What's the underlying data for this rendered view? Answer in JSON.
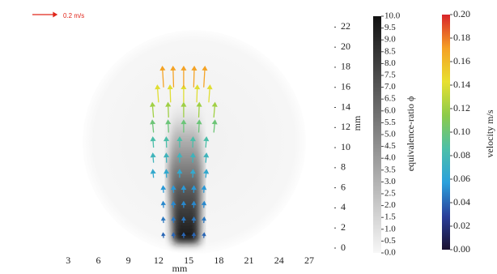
{
  "chart_data": {
    "type": "quiver",
    "xlabel": "mm",
    "ylabel": "mm",
    "xlim": [
      0,
      29.5
    ],
    "ylim": [
      0,
      23
    ],
    "xticks": [
      3,
      6,
      9,
      12,
      15,
      18,
      21,
      24,
      27
    ],
    "yticks": [
      0,
      2,
      4,
      6,
      8,
      10,
      12,
      14,
      16,
      18,
      20,
      22
    ],
    "reference": {
      "value": 0.2,
      "label": "0.2 m/s",
      "color": "#e0261b"
    },
    "arrows": {
      "x": [
        12.5,
        13.5,
        14.5,
        15.5,
        16.5,
        12.5,
        13.5,
        14.5,
        15.5,
        16.5,
        12.5,
        13.5,
        14.5,
        15.5,
        16.5,
        12.5,
        13.5,
        14.5,
        15.5,
        16.5,
        11.5,
        12.8,
        14.1,
        15.4,
        16.7,
        11.5,
        12.8,
        14.1,
        15.4,
        16.7,
        11.5,
        12.8,
        14.1,
        15.4,
        16.7,
        11.5,
        13,
        14.5,
        16,
        17.5,
        11.5,
        13,
        14.5,
        16,
        17.5,
        12,
        13.2,
        14.5,
        15.8,
        17,
        12.5,
        13.5,
        14.5,
        15.5,
        16.5
      ],
      "y": [
        1,
        1,
        1,
        1,
        1,
        2.5,
        2.5,
        2.5,
        2.5,
        2.5,
        4,
        4,
        4,
        4,
        4,
        5.5,
        5.5,
        5.5,
        5.5,
        5.5,
        7,
        7,
        7,
        7,
        7,
        8.5,
        8.5,
        8.5,
        8.5,
        8.5,
        10,
        10,
        10,
        10,
        10,
        11.5,
        11.5,
        11.5,
        11.5,
        11.5,
        13,
        13,
        13,
        13,
        13,
        14.5,
        14.5,
        14.5,
        14.5,
        14.5,
        16,
        16,
        16,
        16,
        16
      ],
      "u": [
        -0.004,
        -0.002,
        0,
        0.002,
        0.004,
        -0.004,
        -0.002,
        0,
        0.002,
        0.004,
        -0.004,
        -0.002,
        0,
        0.002,
        0.004,
        -0.004,
        -0.002,
        0,
        0.002,
        0.004,
        -0.006,
        -0.003,
        0,
        0.003,
        0.006,
        -0.006,
        -0.003,
        0,
        0.003,
        0.006,
        -0.006,
        -0.003,
        0,
        0.003,
        0.006,
        -0.01,
        -0.005,
        0,
        0.005,
        0.01,
        -0.01,
        -0.005,
        0,
        0.005,
        0.01,
        -0.01,
        -0.005,
        0,
        0.005,
        0.01,
        -0.01,
        -0.005,
        0,
        0.005,
        0.01
      ],
      "v": [
        0.04,
        0.04,
        0.04,
        0.04,
        0.04,
        0.045,
        0.045,
        0.045,
        0.045,
        0.045,
        0.05,
        0.05,
        0.05,
        0.05,
        0.05,
        0.055,
        0.055,
        0.055,
        0.055,
        0.055,
        0.065,
        0.065,
        0.065,
        0.065,
        0.065,
        0.075,
        0.075,
        0.075,
        0.075,
        0.075,
        0.085,
        0.085,
        0.085,
        0.085,
        0.085,
        0.1,
        0.1,
        0.1,
        0.1,
        0.1,
        0.12,
        0.12,
        0.12,
        0.12,
        0.12,
        0.14,
        0.14,
        0.14,
        0.14,
        0.14,
        0.17,
        0.17,
        0.17,
        0.17,
        0.17
      ]
    },
    "phi_colorbar": {
      "label": "equivalence-ratio ϕ",
      "lim": [
        0,
        10
      ],
      "colors": [
        "#f7f7f7",
        "#111111"
      ],
      "ticks": [
        {
          "value": 0,
          "label": "0.0"
        },
        {
          "value": 0.5,
          "label": "0.5"
        },
        {
          "value": 1,
          "label": "1.0"
        },
        {
          "value": 1.5,
          "label": "1.5"
        },
        {
          "value": 2,
          "label": "2.0"
        },
        {
          "value": 2.5,
          "label": "2.5"
        },
        {
          "value": 3,
          "label": "3.0"
        },
        {
          "value": 3.5,
          "label": "3.5"
        },
        {
          "value": 4,
          "label": "4.0"
        },
        {
          "value": 4.5,
          "label": "4.5"
        },
        {
          "value": 5,
          "label": "5.0"
        },
        {
          "value": 5.5,
          "label": "5.5"
        },
        {
          "value": 6,
          "label": "6.0"
        },
        {
          "value": 6.5,
          "label": "6.5"
        },
        {
          "value": 7,
          "label": "7.0"
        },
        {
          "value": 7.5,
          "label": "7.5"
        },
        {
          "value": 8,
          "label": "8.0"
        },
        {
          "value": 8.5,
          "label": "8.5"
        },
        {
          "value": 9,
          "label": "9.0"
        },
        {
          "value": 9.5,
          "label": "9.5"
        },
        {
          "value": 10,
          "label": "10.0"
        }
      ]
    },
    "velocity_colorbar": {
      "label": "velocity m/s",
      "lim": [
        0,
        0.2
      ],
      "colors": [
        "#1a1030",
        "#2a3f9a",
        "#2aa0dc",
        "#4cbfa8",
        "#8ccb4a",
        "#e8e030",
        "#f5a025",
        "#d8252a"
      ],
      "ticks": [
        {
          "value": 0,
          "label": "0.00"
        },
        {
          "value": 0.02,
          "label": "0.02"
        },
        {
          "value": 0.04,
          "label": "0.04"
        },
        {
          "value": 0.06,
          "label": "0.06"
        },
        {
          "value": 0.08,
          "label": "0.08"
        },
        {
          "value": 0.1,
          "label": "0.10"
        },
        {
          "value": 0.12,
          "label": "0.12"
        },
        {
          "value": 0.14,
          "label": "0.14"
        },
        {
          "value": 0.16,
          "label": "0.16"
        },
        {
          "value": 0.18,
          "label": "0.18"
        },
        {
          "value": 0.2,
          "label": "0.20"
        }
      ]
    }
  }
}
